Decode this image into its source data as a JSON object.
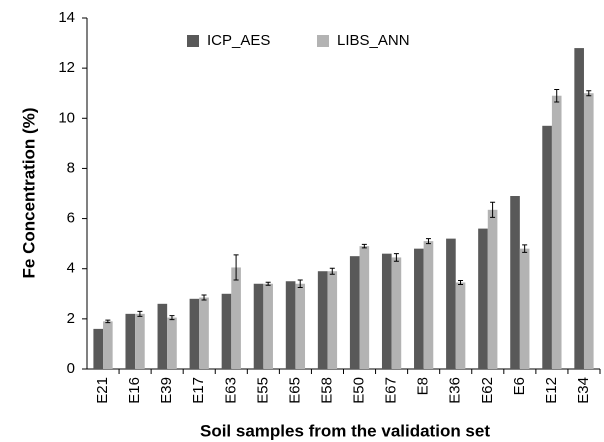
{
  "chart_data": {
    "type": "bar",
    "x_label": "Soil samples from the validation set",
    "y_label": "Fe Concentration (%)",
    "categories": [
      "E21",
      "E16",
      "E39",
      "E17",
      "E63",
      "E55",
      "E65",
      "E58",
      "E50",
      "E67",
      "E8",
      "E36",
      "E62",
      "E6",
      "E12",
      "E34"
    ],
    "series": [
      {
        "name": "ICP_AES",
        "color": "#595959",
        "values": [
          1.6,
          2.2,
          2.6,
          2.8,
          3.0,
          3.4,
          3.5,
          3.9,
          4.5,
          4.6,
          4.8,
          5.2,
          5.6,
          6.9,
          9.7,
          12.8
        ]
      },
      {
        "name": "LIBS_ANN",
        "color": "#b3b3b3",
        "values": [
          1.9,
          2.2,
          2.05,
          2.85,
          4.05,
          3.4,
          3.4,
          3.9,
          4.9,
          4.45,
          5.1,
          3.45,
          6.35,
          4.8,
          10.9,
          11.0
        ],
        "errors": [
          0.05,
          0.1,
          0.08,
          0.1,
          0.5,
          0.06,
          0.15,
          0.12,
          0.07,
          0.15,
          0.1,
          0.08,
          0.3,
          0.15,
          0.25,
          0.1
        ]
      }
    ],
    "ylim": [
      0,
      14
    ],
    "yticks": [
      0,
      2,
      4,
      6,
      8,
      10,
      12,
      14
    ],
    "legend": "top"
  }
}
